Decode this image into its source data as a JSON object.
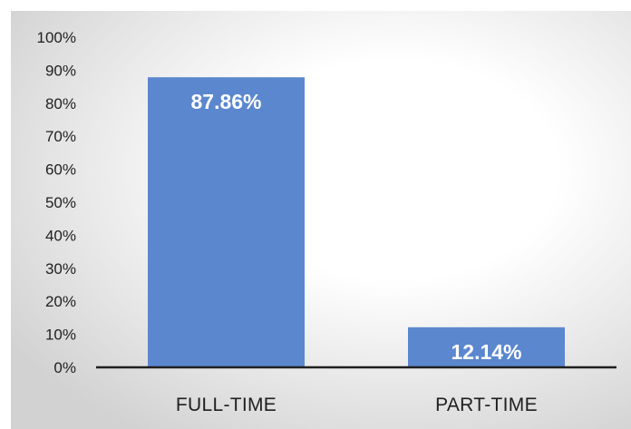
{
  "chart_data": {
    "type": "bar",
    "title": "",
    "xlabel": "",
    "ylabel": "",
    "categories": [
      "FULL-TIME",
      "PART-TIME"
    ],
    "values": [
      87.86,
      12.14
    ],
    "data_labels": [
      "87.86%",
      "12.14%"
    ],
    "ylim": [
      0,
      100
    ],
    "y_ticks": [
      0,
      10,
      20,
      30,
      40,
      50,
      60,
      70,
      80,
      90,
      100
    ],
    "y_tick_labels": [
      "0%",
      "10%",
      "20%",
      "30%",
      "40%",
      "50%",
      "60%",
      "70%",
      "80%",
      "90%",
      "100%"
    ],
    "grid": false,
    "legend": "none",
    "colors": {
      "bar": "#5b87cf",
      "background_center": "#ffffff",
      "background_edge": "#d2d2d2",
      "axis": "#1f1f1f"
    }
  }
}
